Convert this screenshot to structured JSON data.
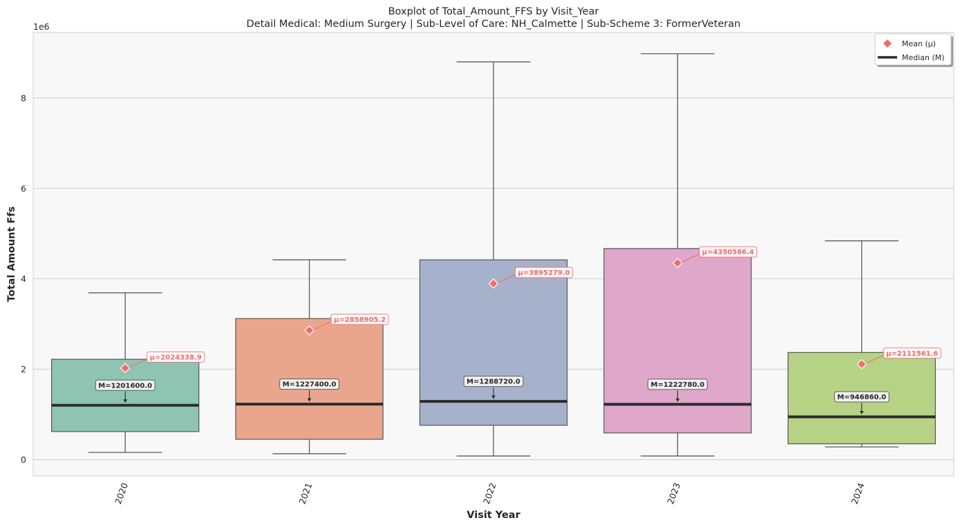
{
  "chart_data": {
    "type": "box",
    "title": "Boxplot of Total_Amount_FFS by Visit_Year",
    "subtitle": "Detail Medical: Medium Surgery | Sub-Level of Care: NH_Calmette | Sub-Scheme 3: FormerVeteran",
    "xlabel": "Visit Year",
    "ylabel": "Total Amount Ffs",
    "y_scale_label": "1e6",
    "y_ticks": [
      0,
      2,
      4,
      6,
      8
    ],
    "ylim": [
      -0.36,
      9.45
    ],
    "y_unit_multiplier": 1000000,
    "grid": "horizontal",
    "legend_position": "top-right",
    "legend": [
      {
        "label": "Mean (μ)",
        "marker": "diamond"
      },
      {
        "label": "Median (M)",
        "marker": "line"
      }
    ],
    "categories": [
      "2020",
      "2021",
      "2022",
      "2023",
      "2024"
    ],
    "boxes": [
      {
        "category": "2020",
        "whisker_low": 0.16,
        "q1": 0.62,
        "median": 1.2016,
        "q3": 2.22,
        "whisker_high": 3.69,
        "mean": 2.0243389,
        "median_label": "M=1201600.0",
        "mean_label": "μ=2024338.9",
        "color": "#8fc4b2"
      },
      {
        "category": "2021",
        "whisker_low": 0.13,
        "q1": 0.45,
        "median": 1.2274,
        "q3": 3.12,
        "whisker_high": 4.42,
        "mean": 2.8589052,
        "median_label": "M=1227400.0",
        "mean_label": "μ=2858905.2",
        "color": "#eaa68d"
      },
      {
        "category": "2022",
        "whisker_low": 0.08,
        "q1": 0.76,
        "median": 1.28872,
        "q3": 4.42,
        "whisker_high": 8.8,
        "mean": 3.895279,
        "median_label": "M=1288720.0",
        "mean_label": "μ=3895279.0",
        "color": "#a6b2cc"
      },
      {
        "category": "2023",
        "whisker_low": 0.08,
        "q1": 0.59,
        "median": 1.22278,
        "q3": 4.67,
        "whisker_high": 8.98,
        "mean": 4.3505864,
        "median_label": "M=1222780.0",
        "mean_label": "μ=4350586.4",
        "color": "#dfa7c9"
      },
      {
        "category": "2024",
        "whisker_low": 0.28,
        "q1": 0.35,
        "median": 0.94686,
        "q3": 2.37,
        "whisker_high": 4.84,
        "mean": 2.1115616,
        "median_label": "M=946860.0",
        "mean_label": "μ=2111561.6",
        "color": "#b6d285"
      }
    ],
    "mean_color": "#f26b6b",
    "median_color": "#2b2b2b"
  }
}
